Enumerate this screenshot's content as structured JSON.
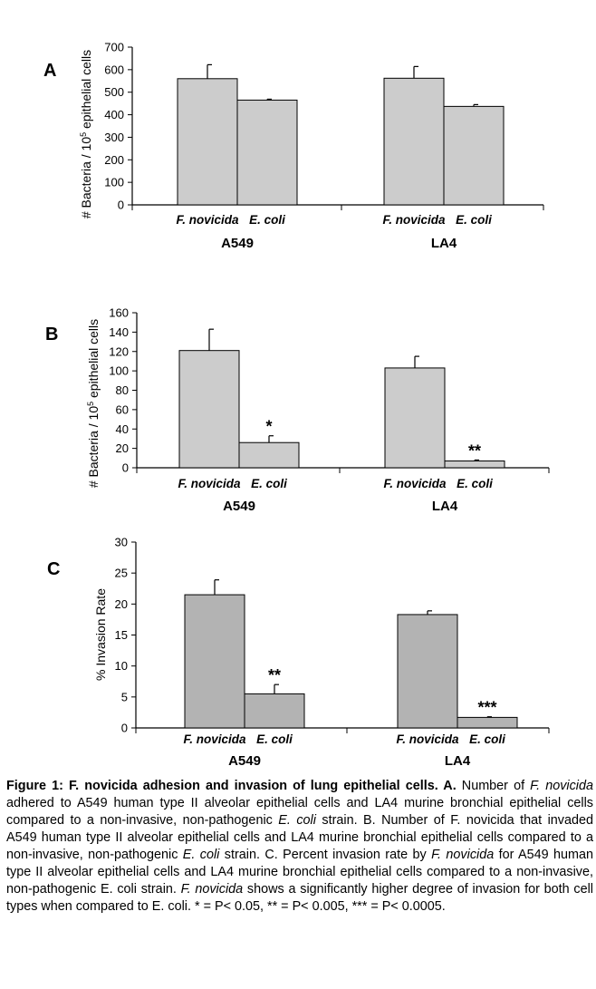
{
  "chart_data": [
    {
      "panel_label": "A",
      "type": "bar",
      "ylabel_pre": "# Bacteria / 10",
      "ylabel_sup": "5",
      "ylabel_post": " epithelial cells",
      "ylim": [
        0,
        700
      ],
      "yticks": [
        0,
        100,
        200,
        300,
        400,
        500,
        600,
        700
      ],
      "groups": [
        {
          "name": "A549",
          "bars": [
            {
              "label": "F. novicida",
              "value": 560,
              "error": 62,
              "sig": ""
            },
            {
              "label": "E. coli",
              "value": 465,
              "error": 4,
              "sig": ""
            }
          ]
        },
        {
          "name": "LA4",
          "bars": [
            {
              "label": "F. novicida",
              "value": 562,
              "error": 52,
              "sig": ""
            },
            {
              "label": "E. coli",
              "value": 437,
              "error": 8,
              "sig": ""
            }
          ]
        }
      ],
      "bar_color": "#cccccc"
    },
    {
      "panel_label": "B",
      "type": "bar",
      "ylabel_pre": "# Bacteria / 10",
      "ylabel_sup": "5",
      "ylabel_post": " epithelial cells",
      "ylim": [
        0,
        160
      ],
      "yticks": [
        0,
        20,
        40,
        60,
        80,
        100,
        120,
        140,
        160
      ],
      "groups": [
        {
          "name": "A549",
          "bars": [
            {
              "label": "F. novicida",
              "value": 121,
              "error": 22,
              "sig": ""
            },
            {
              "label": "E. coli",
              "value": 26,
              "error": 7,
              "sig": "*"
            }
          ]
        },
        {
          "name": "LA4",
          "bars": [
            {
              "label": "F. novicida",
              "value": 103,
              "error": 12,
              "sig": ""
            },
            {
              "label": "E. coli",
              "value": 7,
              "error": 1,
              "sig": "**"
            }
          ]
        }
      ],
      "bar_color": "#cccccc"
    },
    {
      "panel_label": "C",
      "type": "bar",
      "ylabel_pre": "% Invasion Rate",
      "ylabel_sup": "",
      "ylabel_post": "",
      "ylim": [
        0,
        30
      ],
      "yticks": [
        0,
        5,
        10,
        15,
        20,
        25,
        30
      ],
      "groups": [
        {
          "name": "A549",
          "bars": [
            {
              "label": "F. novicida",
              "value": 21.5,
              "error": 2.4,
              "sig": ""
            },
            {
              "label": "E. coli",
              "value": 5.5,
              "error": 1.5,
              "sig": "**"
            }
          ]
        },
        {
          "name": "LA4",
          "bars": [
            {
              "label": "F. novicida",
              "value": 18.3,
              "error": 0.6,
              "sig": ""
            },
            {
              "label": "E. coli",
              "value": 1.7,
              "error": 0.1,
              "sig": "***"
            }
          ]
        }
      ],
      "bar_color": "#b3b3b3"
    }
  ],
  "caption": {
    "s1": "Figure 1:  F. novicida adhesion and invasion of lung epithelial cells.  A.",
    "s2": " Number of ",
    "s3": "F. novicida",
    "s4": " adhered to A549 human type II alveolar epithelial cells and LA4 murine bronchial epithelial cells compared to a non-invasive, non-pathogenic ",
    "s5": "E. coli",
    "s6": " strain. B. Number of F. novicida that invaded A549 human type II alveolar epithelial cells and LA4 murine bronchial epithelial cells compared to a non-invasive, non-pathogenic ",
    "s7": "E. coli",
    "s8": " strain. C. Percent invasion rate by ",
    "s9": "F. novicida",
    "s10": " for A549 human type II alveolar epithelial cells and LA4 murine bronchial epithelial cells compared to a non-invasive, non-pathogenic E. coli strain. ",
    "s11": "F. novicida",
    "s12": " shows a significantly higher degree of invasion for both cell types when compared to E. coli. * = P< 0.05, ** = P< 0.005, *** = P< 0.0005."
  }
}
